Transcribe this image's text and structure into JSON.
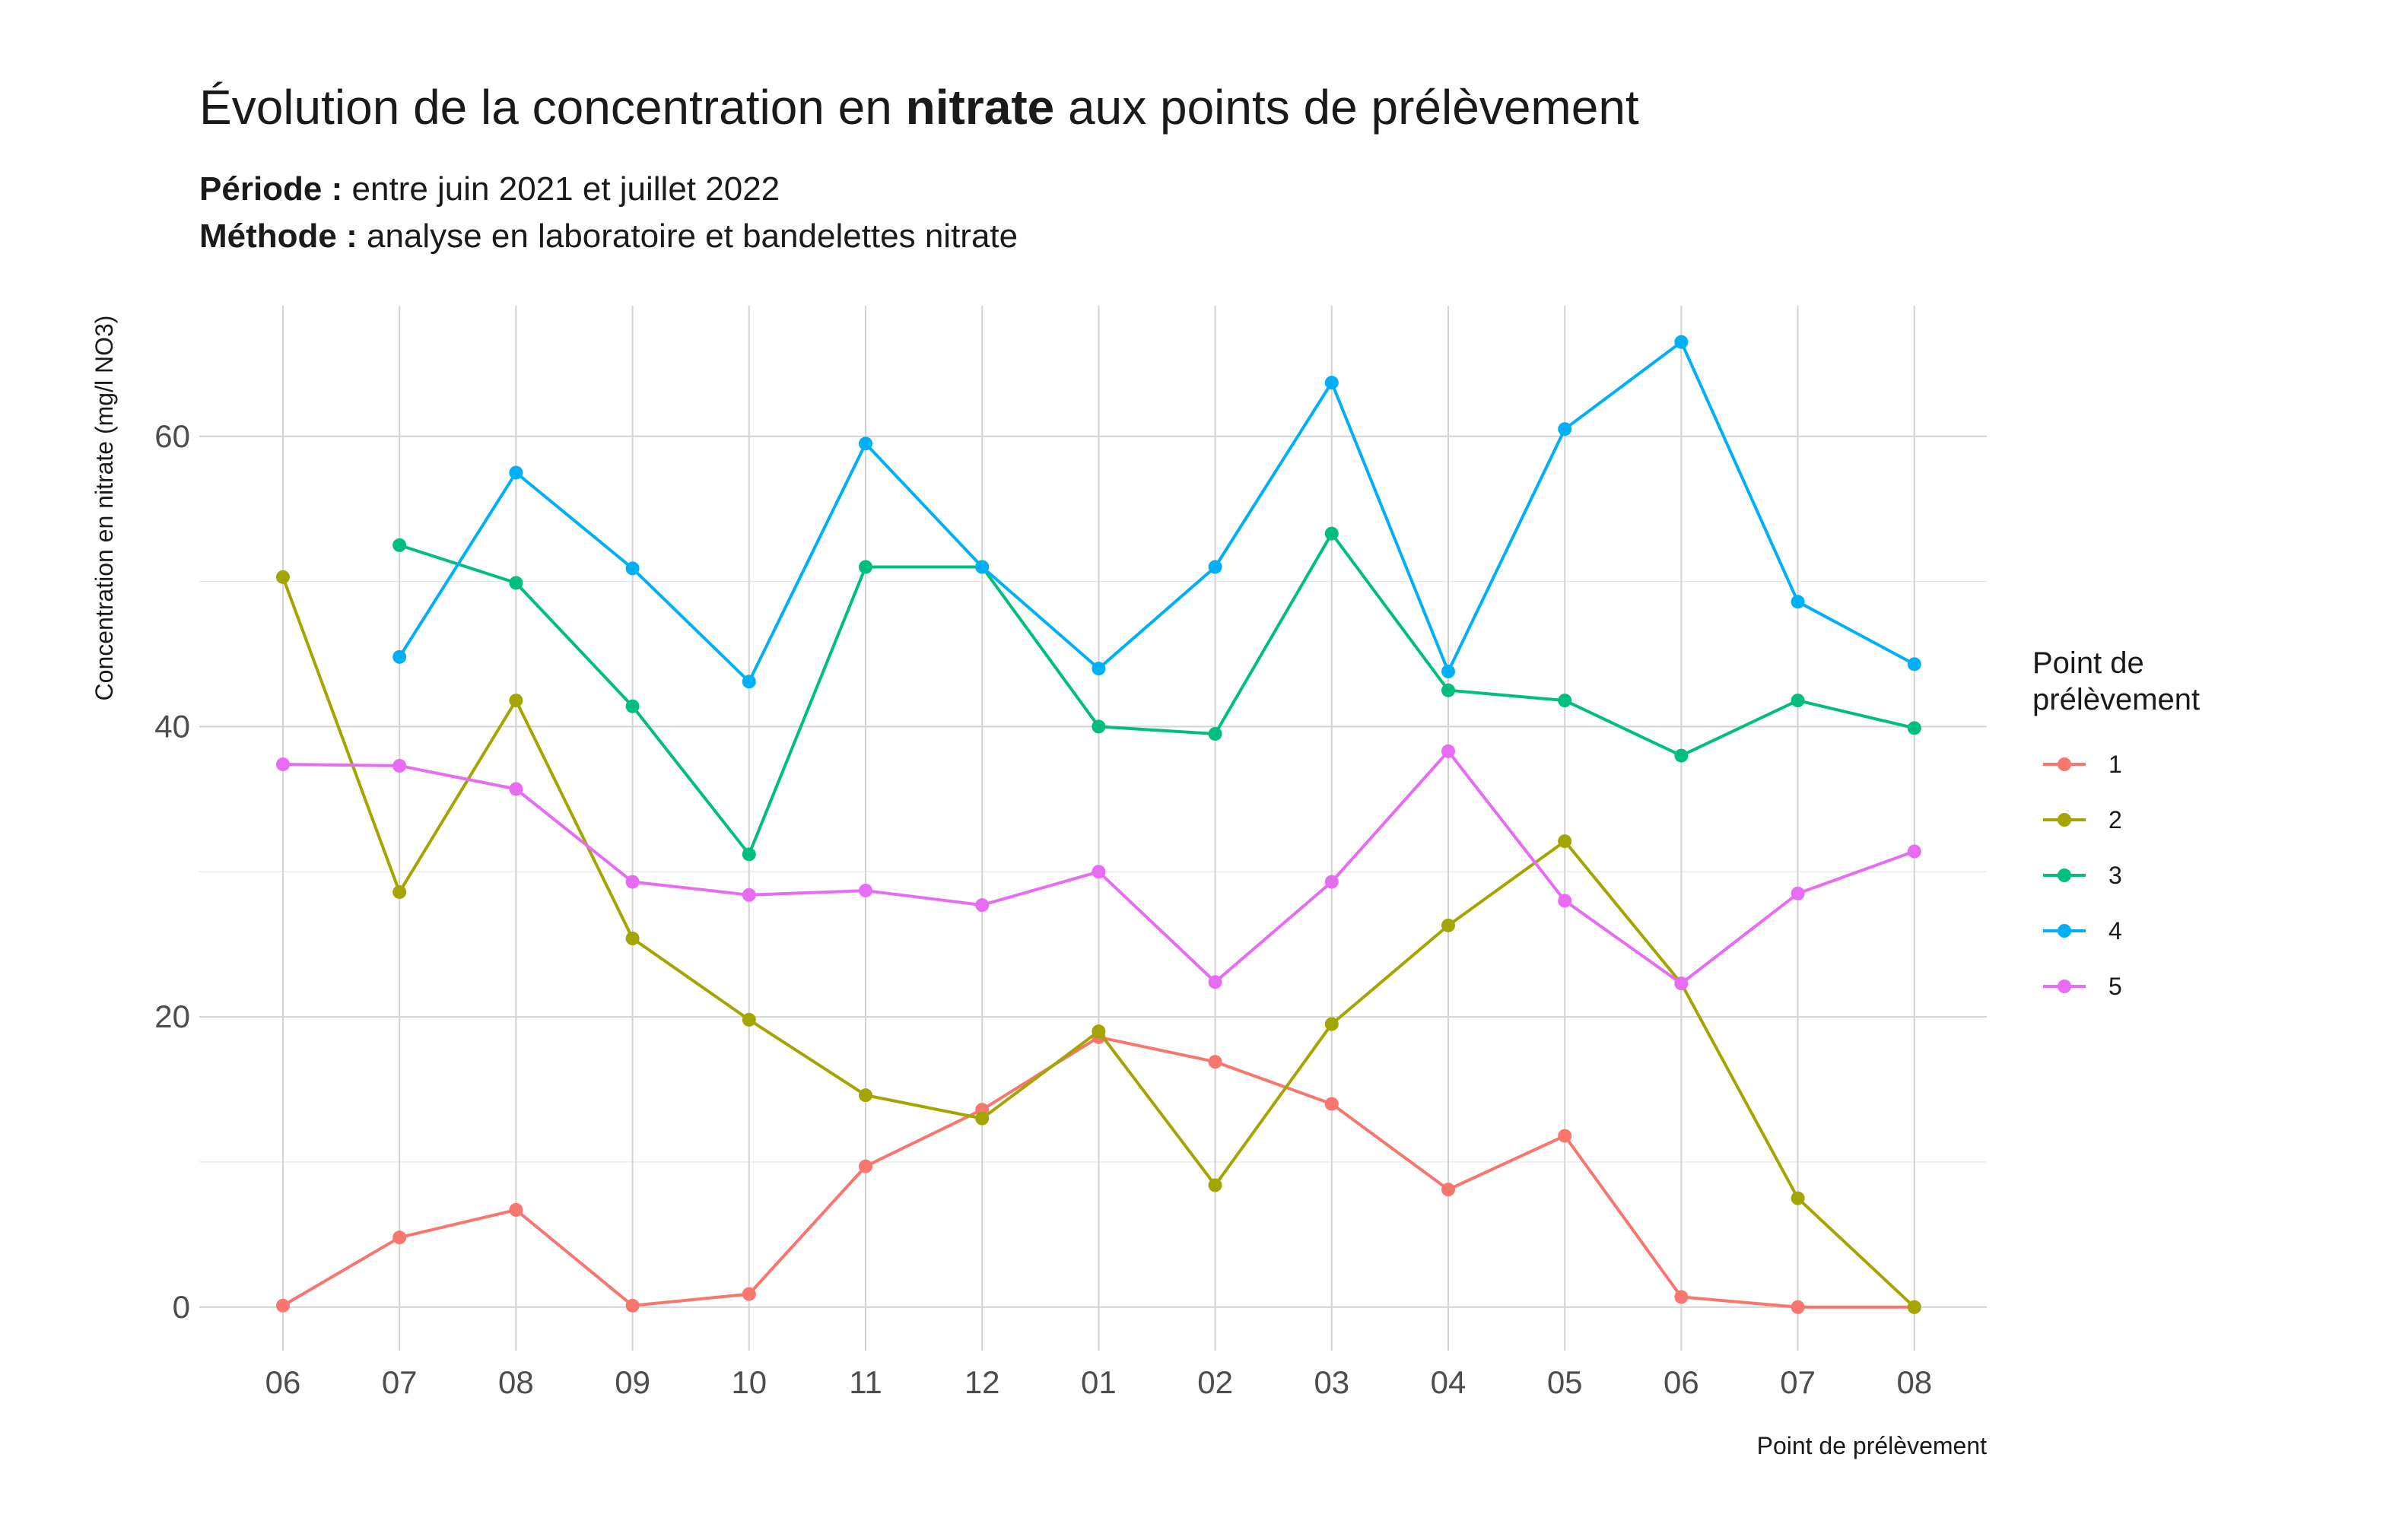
{
  "header": {
    "title_prefix": "Évolution de la concentration en ",
    "title_bold": "nitrate",
    "title_suffix": " aux points de prélèvement",
    "sub1_label": "Période :",
    "sub1_text": " entre juin 2021 et juillet 2022",
    "sub2_label": "Méthode :",
    "sub2_text": " analyse en laboratoire et bandelettes nitrate"
  },
  "chart_data": {
    "type": "line",
    "xlabel": "Point de prélèvement",
    "ylabel": "Concentration en nitrate (mg/l NO3)",
    "categories": [
      "06",
      "07",
      "08",
      "09",
      "10",
      "11",
      "12",
      "01",
      "02",
      "03",
      "04",
      "05",
      "06",
      "07",
      "08"
    ],
    "ylim": [
      -3,
      69
    ],
    "yticks": [
      0,
      20,
      40,
      60
    ],
    "grid": true,
    "legend": {
      "title_line1": "Point de",
      "title_line2": "prélèvement",
      "placement": "right"
    },
    "series": [
      {
        "name": "1",
        "color": "#F8766D",
        "values": [
          0.1,
          4.8,
          6.7,
          0.1,
          0.9,
          9.7,
          13.6,
          18.6,
          16.9,
          14.0,
          8.1,
          11.8,
          0.7,
          0.0,
          0.0
        ]
      },
      {
        "name": "2",
        "color": "#A3A500",
        "values": [
          50.3,
          28.6,
          41.8,
          25.4,
          19.8,
          14.6,
          13.0,
          19.0,
          8.4,
          19.5,
          26.3,
          32.1,
          22.3,
          7.5,
          0.0
        ]
      },
      {
        "name": "3",
        "color": "#00BF7D",
        "values": [
          null,
          52.5,
          49.9,
          41.4,
          31.2,
          51.0,
          51.0,
          40.0,
          39.5,
          53.3,
          42.5,
          41.8,
          38.0,
          41.8,
          39.9
        ]
      },
      {
        "name": "4",
        "color": "#00B0F6",
        "values": [
          null,
          44.8,
          57.5,
          50.9,
          43.1,
          59.5,
          51.0,
          44.0,
          51.0,
          63.7,
          43.8,
          60.5,
          66.5,
          48.6,
          44.3
        ]
      },
      {
        "name": "5",
        "color": "#E76BF3",
        "values": [
          37.4,
          37.3,
          35.7,
          29.3,
          28.4,
          28.7,
          27.7,
          30.0,
          22.4,
          29.3,
          38.3,
          28.0,
          22.3,
          28.5,
          31.4
        ]
      }
    ]
  }
}
